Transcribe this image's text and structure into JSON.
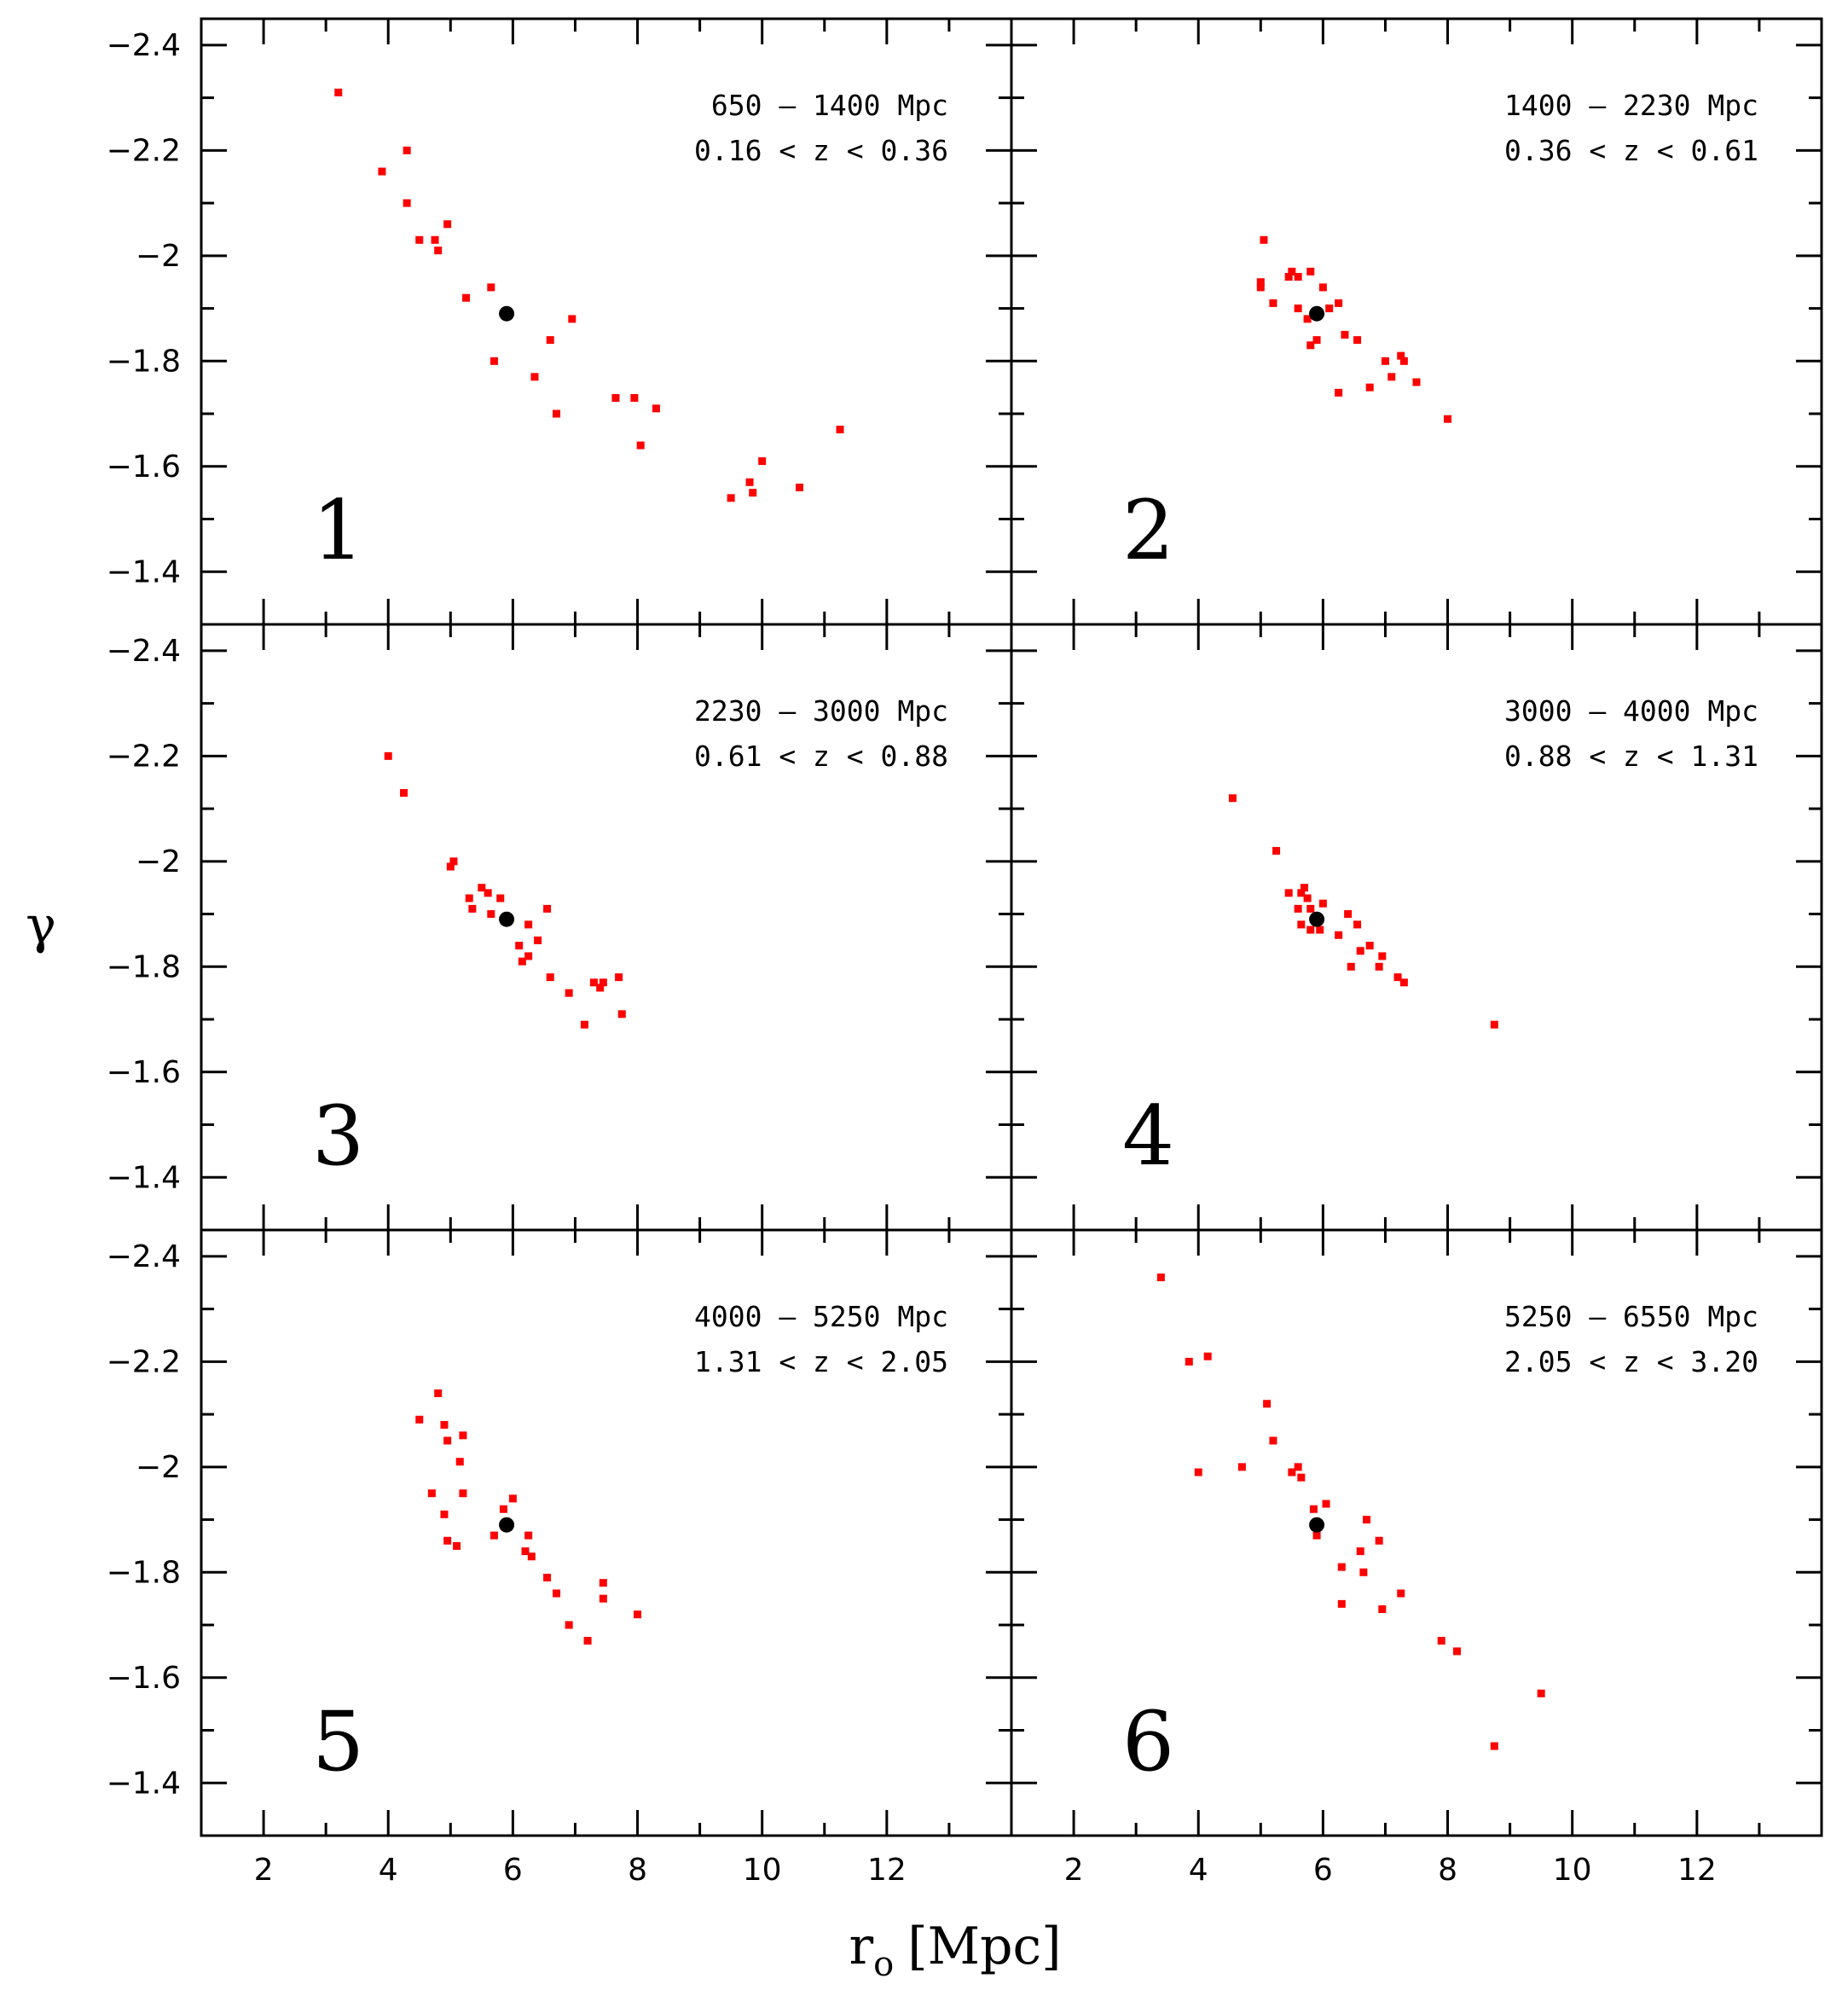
{
  "chart_data": {
    "type": "scatter",
    "xlabel": "r",
    "xlabel_sub": "o",
    "xlabel_unit": "[Mpc]",
    "ylabel": "γ",
    "xlim": [
      1,
      14
    ],
    "ylim": [
      -1.3,
      -2.45
    ],
    "x_ticks": [
      2,
      4,
      6,
      8,
      10,
      12
    ],
    "y_ticks": [
      -2.4,
      -2.2,
      -2,
      -1.8,
      -1.6,
      -1.4
    ],
    "point_color": "#ff0000",
    "reference_color": "#000000",
    "reference_point": {
      "x": 5.9,
      "y": -1.89
    },
    "panels": [
      {
        "number": "1",
        "range_label": "650 – 1400 Mpc",
        "z_label": "0.16 < z < 0.36",
        "points": [
          {
            "x": 3.2,
            "y": -2.31
          },
          {
            "x": 3.9,
            "y": -2.16
          },
          {
            "x": 4.3,
            "y": -2.2
          },
          {
            "x": 4.3,
            "y": -2.1
          },
          {
            "x": 4.5,
            "y": -2.03
          },
          {
            "x": 4.75,
            "y": -2.03
          },
          {
            "x": 4.8,
            "y": -2.01
          },
          {
            "x": 4.95,
            "y": -2.06
          },
          {
            "x": 5.25,
            "y": -1.92
          },
          {
            "x": 5.65,
            "y": -1.94
          },
          {
            "x": 5.7,
            "y": -1.8
          },
          {
            "x": 6.35,
            "y": -1.77
          },
          {
            "x": 6.6,
            "y": -1.84
          },
          {
            "x": 6.7,
            "y": -1.7
          },
          {
            "x": 6.95,
            "y": -1.88
          },
          {
            "x": 7.65,
            "y": -1.73
          },
          {
            "x": 7.95,
            "y": -1.73
          },
          {
            "x": 8.05,
            "y": -1.64
          },
          {
            "x": 8.3,
            "y": -1.71
          },
          {
            "x": 9.5,
            "y": -1.54
          },
          {
            "x": 9.8,
            "y": -1.57
          },
          {
            "x": 9.85,
            "y": -1.55
          },
          {
            "x": 10.0,
            "y": -1.61
          },
          {
            "x": 10.6,
            "y": -1.56
          },
          {
            "x": 11.25,
            "y": -1.67
          }
        ]
      },
      {
        "number": "2",
        "range_label": "1400 – 2230 Mpc",
        "z_label": "0.36 < z < 0.61",
        "points": [
          {
            "x": 5.05,
            "y": -2.03
          },
          {
            "x": 5.0,
            "y": -1.95
          },
          {
            "x": 5.0,
            "y": -1.94
          },
          {
            "x": 5.2,
            "y": -1.91
          },
          {
            "x": 5.45,
            "y": -1.96
          },
          {
            "x": 5.5,
            "y": -1.97
          },
          {
            "x": 5.6,
            "y": -1.96
          },
          {
            "x": 5.6,
            "y": -1.9
          },
          {
            "x": 5.75,
            "y": -1.88
          },
          {
            "x": 5.8,
            "y": -1.97
          },
          {
            "x": 5.8,
            "y": -1.83
          },
          {
            "x": 5.9,
            "y": -1.84
          },
          {
            "x": 6.0,
            "y": -1.94
          },
          {
            "x": 6.1,
            "y": -1.9
          },
          {
            "x": 6.25,
            "y": -1.91
          },
          {
            "x": 6.25,
            "y": -1.74
          },
          {
            "x": 6.35,
            "y": -1.85
          },
          {
            "x": 6.55,
            "y": -1.84
          },
          {
            "x": 6.75,
            "y": -1.75
          },
          {
            "x": 7.0,
            "y": -1.8
          },
          {
            "x": 7.1,
            "y": -1.77
          },
          {
            "x": 7.25,
            "y": -1.81
          },
          {
            "x": 7.3,
            "y": -1.8
          },
          {
            "x": 7.5,
            "y": -1.76
          },
          {
            "x": 8.0,
            "y": -1.69
          }
        ]
      },
      {
        "number": "3",
        "range_label": "2230 – 3000 Mpc",
        "z_label": "0.61 < z < 0.88",
        "points": [
          {
            "x": 4.0,
            "y": -2.2
          },
          {
            "x": 4.25,
            "y": -2.13
          },
          {
            "x": 5.0,
            "y": -1.99
          },
          {
            "x": 5.05,
            "y": -2.0
          },
          {
            "x": 5.3,
            "y": -1.93
          },
          {
            "x": 5.35,
            "y": -1.91
          },
          {
            "x": 5.5,
            "y": -1.95
          },
          {
            "x": 5.6,
            "y": -1.94
          },
          {
            "x": 5.65,
            "y": -1.9
          },
          {
            "x": 5.8,
            "y": -1.93
          },
          {
            "x": 6.1,
            "y": -1.84
          },
          {
            "x": 6.15,
            "y": -1.81
          },
          {
            "x": 6.25,
            "y": -1.88
          },
          {
            "x": 6.25,
            "y": -1.82
          },
          {
            "x": 6.4,
            "y": -1.85
          },
          {
            "x": 6.55,
            "y": -1.91
          },
          {
            "x": 6.6,
            "y": -1.78
          },
          {
            "x": 6.9,
            "y": -1.75
          },
          {
            "x": 7.15,
            "y": -1.69
          },
          {
            "x": 7.3,
            "y": -1.77
          },
          {
            "x": 7.4,
            "y": -1.76
          },
          {
            "x": 7.45,
            "y": -1.77
          },
          {
            "x": 7.7,
            "y": -1.78
          },
          {
            "x": 7.75,
            "y": -1.71
          }
        ]
      },
      {
        "number": "4",
        "range_label": "3000 – 4000 Mpc",
        "z_label": "0.88 < z < 1.31",
        "points": [
          {
            "x": 4.55,
            "y": -2.12
          },
          {
            "x": 5.25,
            "y": -2.02
          },
          {
            "x": 5.45,
            "y": -1.94
          },
          {
            "x": 5.6,
            "y": -1.91
          },
          {
            "x": 5.65,
            "y": -1.94
          },
          {
            "x": 5.65,
            "y": -1.88
          },
          {
            "x": 5.7,
            "y": -1.95
          },
          {
            "x": 5.75,
            "y": -1.93
          },
          {
            "x": 5.8,
            "y": -1.87
          },
          {
            "x": 5.8,
            "y": -1.91
          },
          {
            "x": 5.95,
            "y": -1.87
          },
          {
            "x": 6.0,
            "y": -1.92
          },
          {
            "x": 6.25,
            "y": -1.86
          },
          {
            "x": 6.4,
            "y": -1.9
          },
          {
            "x": 6.45,
            "y": -1.8
          },
          {
            "x": 6.55,
            "y": -1.88
          },
          {
            "x": 6.6,
            "y": -1.83
          },
          {
            "x": 6.75,
            "y": -1.84
          },
          {
            "x": 6.9,
            "y": -1.8
          },
          {
            "x": 6.95,
            "y": -1.82
          },
          {
            "x": 7.2,
            "y": -1.78
          },
          {
            "x": 7.3,
            "y": -1.77
          },
          {
            "x": 8.75,
            "y": -1.69
          }
        ]
      },
      {
        "number": "5",
        "range_label": "4000 – 5250 Mpc",
        "z_label": "1.31 < z < 2.05",
        "points": [
          {
            "x": 4.5,
            "y": -2.09
          },
          {
            "x": 4.7,
            "y": -1.95
          },
          {
            "x": 4.8,
            "y": -2.14
          },
          {
            "x": 4.9,
            "y": -2.08
          },
          {
            "x": 4.9,
            "y": -1.91
          },
          {
            "x": 4.95,
            "y": -2.05
          },
          {
            "x": 4.95,
            "y": -1.86
          },
          {
            "x": 5.1,
            "y": -1.85
          },
          {
            "x": 5.15,
            "y": -2.01
          },
          {
            "x": 5.2,
            "y": -2.06
          },
          {
            "x": 5.2,
            "y": -1.95
          },
          {
            "x": 5.7,
            "y": -1.87
          },
          {
            "x": 5.85,
            "y": -1.92
          },
          {
            "x": 6.0,
            "y": -1.94
          },
          {
            "x": 6.2,
            "y": -1.84
          },
          {
            "x": 6.25,
            "y": -1.87
          },
          {
            "x": 6.3,
            "y": -1.83
          },
          {
            "x": 6.55,
            "y": -1.79
          },
          {
            "x": 6.7,
            "y": -1.76
          },
          {
            "x": 6.9,
            "y": -1.7
          },
          {
            "x": 7.2,
            "y": -1.67
          },
          {
            "x": 7.45,
            "y": -1.78
          },
          {
            "x": 7.45,
            "y": -1.75
          },
          {
            "x": 8.0,
            "y": -1.72
          }
        ]
      },
      {
        "number": "6",
        "range_label": "5250 – 6550 Mpc",
        "z_label": "2.05 < z < 3.20",
        "points": [
          {
            "x": 3.4,
            "y": -2.36
          },
          {
            "x": 3.85,
            "y": -2.2
          },
          {
            "x": 4.0,
            "y": -1.99
          },
          {
            "x": 4.15,
            "y": -2.21
          },
          {
            "x": 4.7,
            "y": -2.0
          },
          {
            "x": 5.1,
            "y": -2.12
          },
          {
            "x": 5.2,
            "y": -2.05
          },
          {
            "x": 5.5,
            "y": -1.99
          },
          {
            "x": 5.6,
            "y": -2.0
          },
          {
            "x": 5.65,
            "y": -1.98
          },
          {
            "x": 5.85,
            "y": -1.92
          },
          {
            "x": 5.9,
            "y": -1.87
          },
          {
            "x": 6.05,
            "y": -1.93
          },
          {
            "x": 6.3,
            "y": -1.81
          },
          {
            "x": 6.3,
            "y": -1.74
          },
          {
            "x": 6.6,
            "y": -1.84
          },
          {
            "x": 6.65,
            "y": -1.8
          },
          {
            "x": 6.7,
            "y": -1.9
          },
          {
            "x": 6.9,
            "y": -1.86
          },
          {
            "x": 6.95,
            "y": -1.73
          },
          {
            "x": 7.25,
            "y": -1.76
          },
          {
            "x": 7.9,
            "y": -1.67
          },
          {
            "x": 8.15,
            "y": -1.65
          },
          {
            "x": 8.75,
            "y": -1.47
          },
          {
            "x": 9.5,
            "y": -1.57
          }
        ]
      }
    ]
  }
}
